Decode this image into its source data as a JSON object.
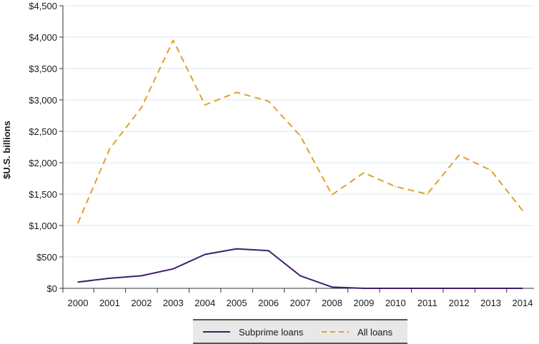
{
  "chart_data": {
    "type": "line",
    "title": "",
    "xlabel": "",
    "ylabel": "$U.S. billions",
    "categories": [
      "2000",
      "2001",
      "2002",
      "2003",
      "2004",
      "2005",
      "2006",
      "2007",
      "2008",
      "2009",
      "2010",
      "2011",
      "2012",
      "2013",
      "2014"
    ],
    "ylim": [
      0,
      4500
    ],
    "yticks": [
      0,
      500,
      1000,
      1500,
      2000,
      2500,
      3000,
      3500,
      4000,
      4500
    ],
    "ytick_labels": [
      "$0",
      "$500",
      "$1,000",
      "$1,500",
      "$2,000",
      "$2,500",
      "$3,000",
      "$3,500",
      "$4,000",
      "$4,500"
    ],
    "grid": true,
    "legend_position": "bottom",
    "series": [
      {
        "name": "Subprime loans",
        "style": "solid",
        "color": "#3d1f6b",
        "values": [
          100,
          160,
          200,
          310,
          540,
          630,
          600,
          200,
          20,
          0,
          0,
          0,
          0,
          0,
          0
        ]
      },
      {
        "name": "All loans",
        "style": "dashed",
        "color": "#e0a12a",
        "values": [
          1040,
          2220,
          2880,
          3950,
          2920,
          3120,
          2980,
          2430,
          1490,
          1840,
          1620,
          1500,
          2120,
          1880,
          1240
        ]
      }
    ]
  },
  "colors": {
    "grid": "#dbe9ef",
    "axis": "#333333",
    "legend_bg": "#e8e8e8",
    "legend_border": "#555555"
  }
}
